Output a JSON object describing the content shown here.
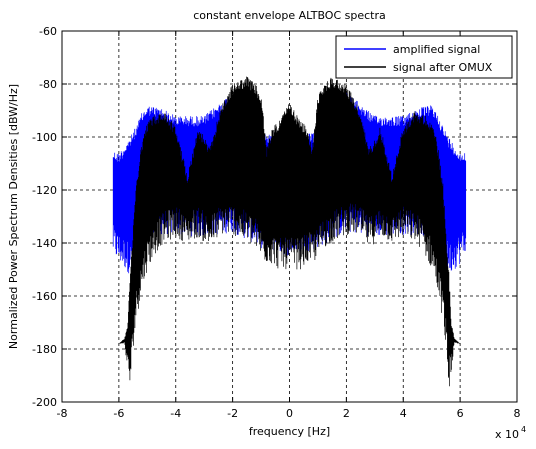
{
  "chart_data": {
    "type": "area",
    "title": "constant envelope ALTBOC spectra",
    "xlabel": "frequency [Hz]",
    "ylabel": "Normalized Power Spectrum Densities [dBW/Hz]",
    "x_multiplier_label": "x 10",
    "x_multiplier_exponent": "4",
    "xlim": [
      -80000,
      80000
    ],
    "ylim": [
      -200,
      -60
    ],
    "x_ticks": [
      -80000,
      -60000,
      -40000,
      -20000,
      0,
      20000,
      40000,
      60000,
      80000
    ],
    "x_tick_labels": [
      "-8",
      "-6",
      "-4",
      "-2",
      "0",
      "2",
      "4",
      "6",
      "8"
    ],
    "y_ticks": [
      -200,
      -180,
      -160,
      -140,
      -120,
      -100,
      -80,
      -60
    ],
    "y_tick_labels": [
      "-200",
      "-180",
      "-160",
      "-140",
      "-120",
      "-100",
      "-80",
      "-60"
    ],
    "grid": true,
    "legend_position": "top-right",
    "series": [
      {
        "name": "amplified signal",
        "color": "#0000ff",
        "x": [
          -62000,
          -60000,
          -58000,
          -56000,
          -54000,
          -52000,
          -50000,
          -45000,
          -40000,
          -30000,
          -20000,
          -10000,
          0,
          10000,
          20000,
          30000,
          40000,
          45000,
          50000,
          52000,
          54000,
          56000,
          58000,
          60000,
          62000
        ],
        "upper": [
          -105,
          -106,
          -103,
          -100,
          -96,
          -91,
          -88,
          -89,
          -92,
          -92,
          -83,
          -98,
          -100,
          -98,
          -83,
          -92,
          -92,
          -89,
          -88,
          -91,
          -96,
          -100,
          -103,
          -106,
          -105
        ],
        "lower": [
          -145,
          -148,
          -150,
          -152,
          -148,
          -140,
          -138,
          -137,
          -137,
          -138,
          -136,
          -142,
          -145,
          -142,
          -136,
          -138,
          -137,
          -137,
          -138,
          -140,
          -148,
          -152,
          -150,
          -148,
          -145
        ]
      },
      {
        "name": "signal after OMUX",
        "color": "#000000",
        "x": [
          -60000,
          -58000,
          -57000,
          -56000,
          -55000,
          -54000,
          -52000,
          -50000,
          -48000,
          -46000,
          -44000,
          -40000,
          -36000,
          -32000,
          -28000,
          -24000,
          -20000,
          -15000,
          -12000,
          -10000,
          -8000,
          -6000,
          -4000,
          0,
          4000,
          6000,
          8000,
          10000,
          12000,
          15000,
          20000,
          24000,
          28000,
          32000,
          36000,
          40000,
          44000,
          46000,
          48000,
          50000,
          52000,
          54000,
          55000,
          56000,
          57000,
          58000,
          60000
        ],
        "upper": [
          -178,
          -176,
          -170,
          -150,
          -135,
          -118,
          -102,
          -94,
          -92,
          -91,
          -90,
          -96,
          -114,
          -96,
          -104,
          -88,
          -80,
          -77,
          -80,
          -84,
          -104,
          -96,
          -94,
          -87,
          -94,
          -96,
          -104,
          -84,
          -80,
          -77,
          -80,
          -88,
          -104,
          -96,
          -114,
          -96,
          -90,
          -91,
          -92,
          -94,
          -102,
          -118,
          -135,
          -150,
          -170,
          -176,
          -178
        ],
        "lower": [
          -178,
          -178,
          -188,
          -196,
          -180,
          -170,
          -158,
          -150,
          -146,
          -142,
          -140,
          -138,
          -140,
          -138,
          -142,
          -137,
          -137,
          -140,
          -142,
          -146,
          -148,
          -148,
          -150,
          -150,
          -150,
          -148,
          -148,
          -146,
          -142,
          -140,
          -137,
          -137,
          -142,
          -138,
          -140,
          -138,
          -140,
          -142,
          -146,
          -150,
          -158,
          -170,
          -180,
          -196,
          -188,
          -178,
          -178
        ]
      }
    ]
  }
}
